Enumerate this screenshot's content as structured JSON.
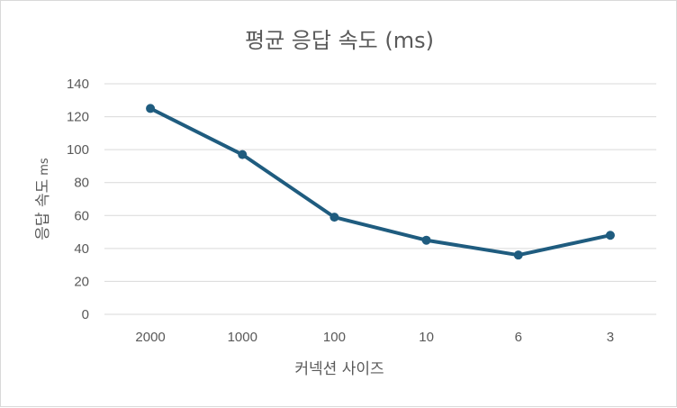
{
  "chart_data": {
    "type": "line",
    "title": "평균 응답 속도 (ms)",
    "xlabel": "커넥션 사이즈",
    "ylabel": "응답 속도",
    "ylabel_unit": "ms",
    "categories": [
      "2000",
      "1000",
      "100",
      "10",
      "6",
      "3"
    ],
    "values": [
      125,
      97,
      59,
      45,
      36,
      48
    ],
    "ylim": [
      0,
      140
    ],
    "yticks": [
      0,
      20,
      40,
      60,
      80,
      100,
      120,
      140
    ],
    "grid": true,
    "legend": "none",
    "colors": {
      "line": "#1f5c7f",
      "grid": "#d9d9d9",
      "text": "#595959"
    }
  }
}
